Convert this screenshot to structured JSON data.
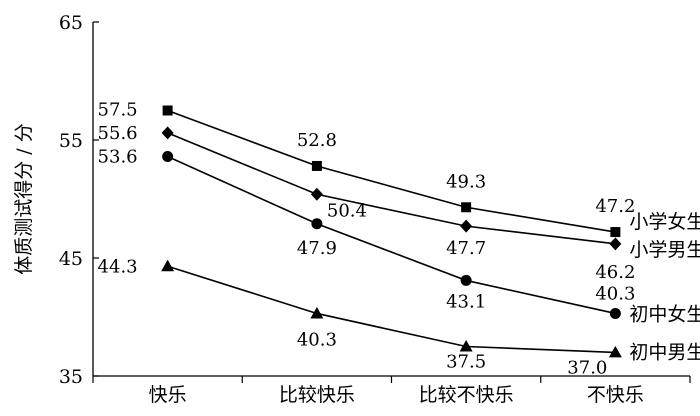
{
  "chart_data": {
    "type": "line",
    "categories": [
      "快乐",
      "比较快乐",
      "比较不快乐",
      "不快乐"
    ],
    "ylabel": "体质测试得分 / 分",
    "ylim": [
      35,
      65
    ],
    "yticks": [
      35,
      45,
      55,
      65
    ],
    "grid": false,
    "legend": "inline-right",
    "series": [
      {
        "name": "小学女生",
        "marker": "square",
        "values": [
          57.5,
          52.8,
          49.3,
          47.2
        ],
        "labels": [
          "57.5",
          "52.8",
          "49.3",
          "47.2"
        ]
      },
      {
        "name": "小学男生",
        "marker": "diamond",
        "values": [
          55.6,
          50.4,
          47.7,
          46.2
        ],
        "labels": [
          "55.6",
          "50.4",
          "47.7",
          "46.2"
        ]
      },
      {
        "name": "初中女生",
        "marker": "circle",
        "values": [
          53.6,
          47.9,
          43.1,
          40.3
        ],
        "labels": [
          "53.6",
          "47.9",
          "43.1",
          "40.3"
        ]
      },
      {
        "name": "初中男生",
        "marker": "triangle",
        "values": [
          44.3,
          40.3,
          37.5,
          37.0
        ],
        "labels": [
          "44.3",
          "40.3",
          "37.5",
          "37.0"
        ]
      }
    ]
  }
}
